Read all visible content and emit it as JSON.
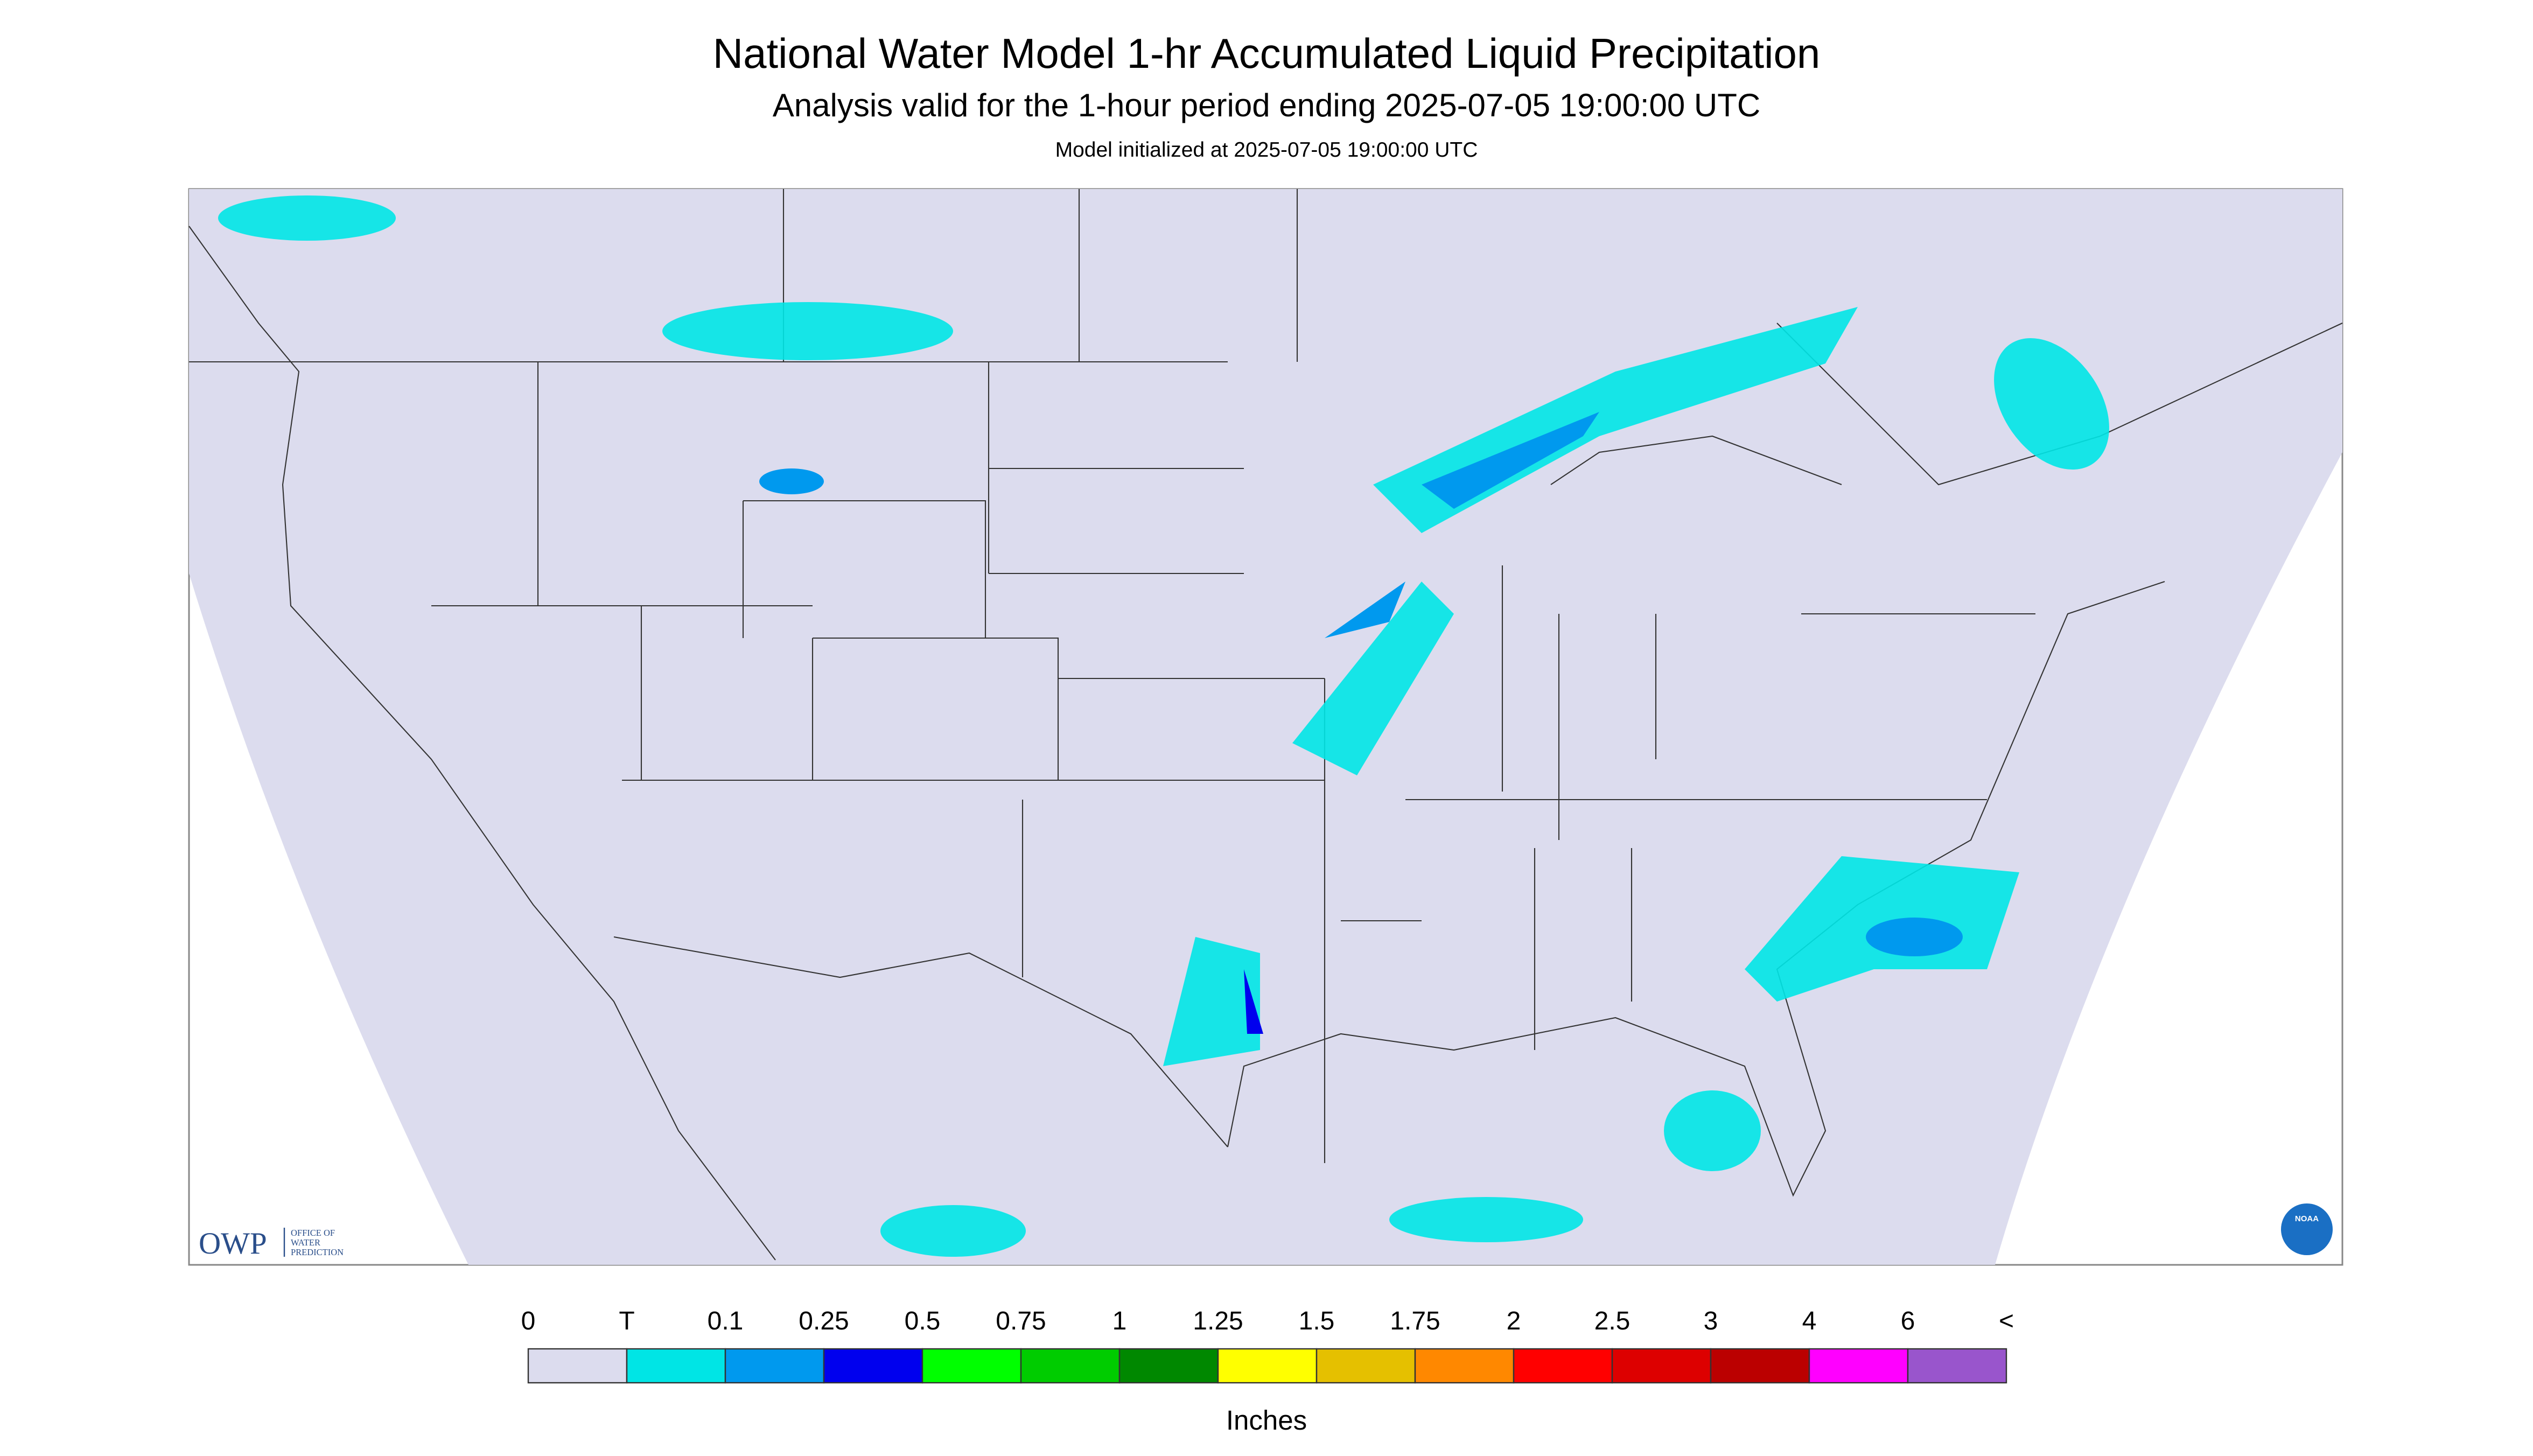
{
  "header": {
    "title": "National Water Model 1-hr Accumulated Liquid Precipitation",
    "subtitle": "Analysis valid for the 1-hour period ending 2025-07-05 19:00:00 UTC",
    "note": "Model initialized at 2025-07-05 19:00:00 UTC"
  },
  "map": {
    "background": "#dcdcee",
    "logo": {
      "acronym": "OWP",
      "name": [
        "OFFICE OF",
        "WATER",
        "PREDICTION"
      ]
    },
    "agency": "NOAA"
  },
  "legend": {
    "labels": [
      "0",
      "T",
      "0.1",
      "0.25",
      "0.5",
      "0.75",
      "1",
      "1.25",
      "1.5",
      "1.75",
      "2",
      "2.5",
      "3",
      "4",
      "6",
      "<"
    ],
    "colors": [
      "#dcdcee",
      "#00e5e5",
      "#0099ee",
      "#0000ee",
      "#00ff00",
      "#00cc00",
      "#008800",
      "#ffff00",
      "#e5c000",
      "#ff8800",
      "#ff0000",
      "#dd0000",
      "#bb0000",
      "#ff00ff",
      "#9955cc"
    ],
    "unit": "Inches"
  }
}
